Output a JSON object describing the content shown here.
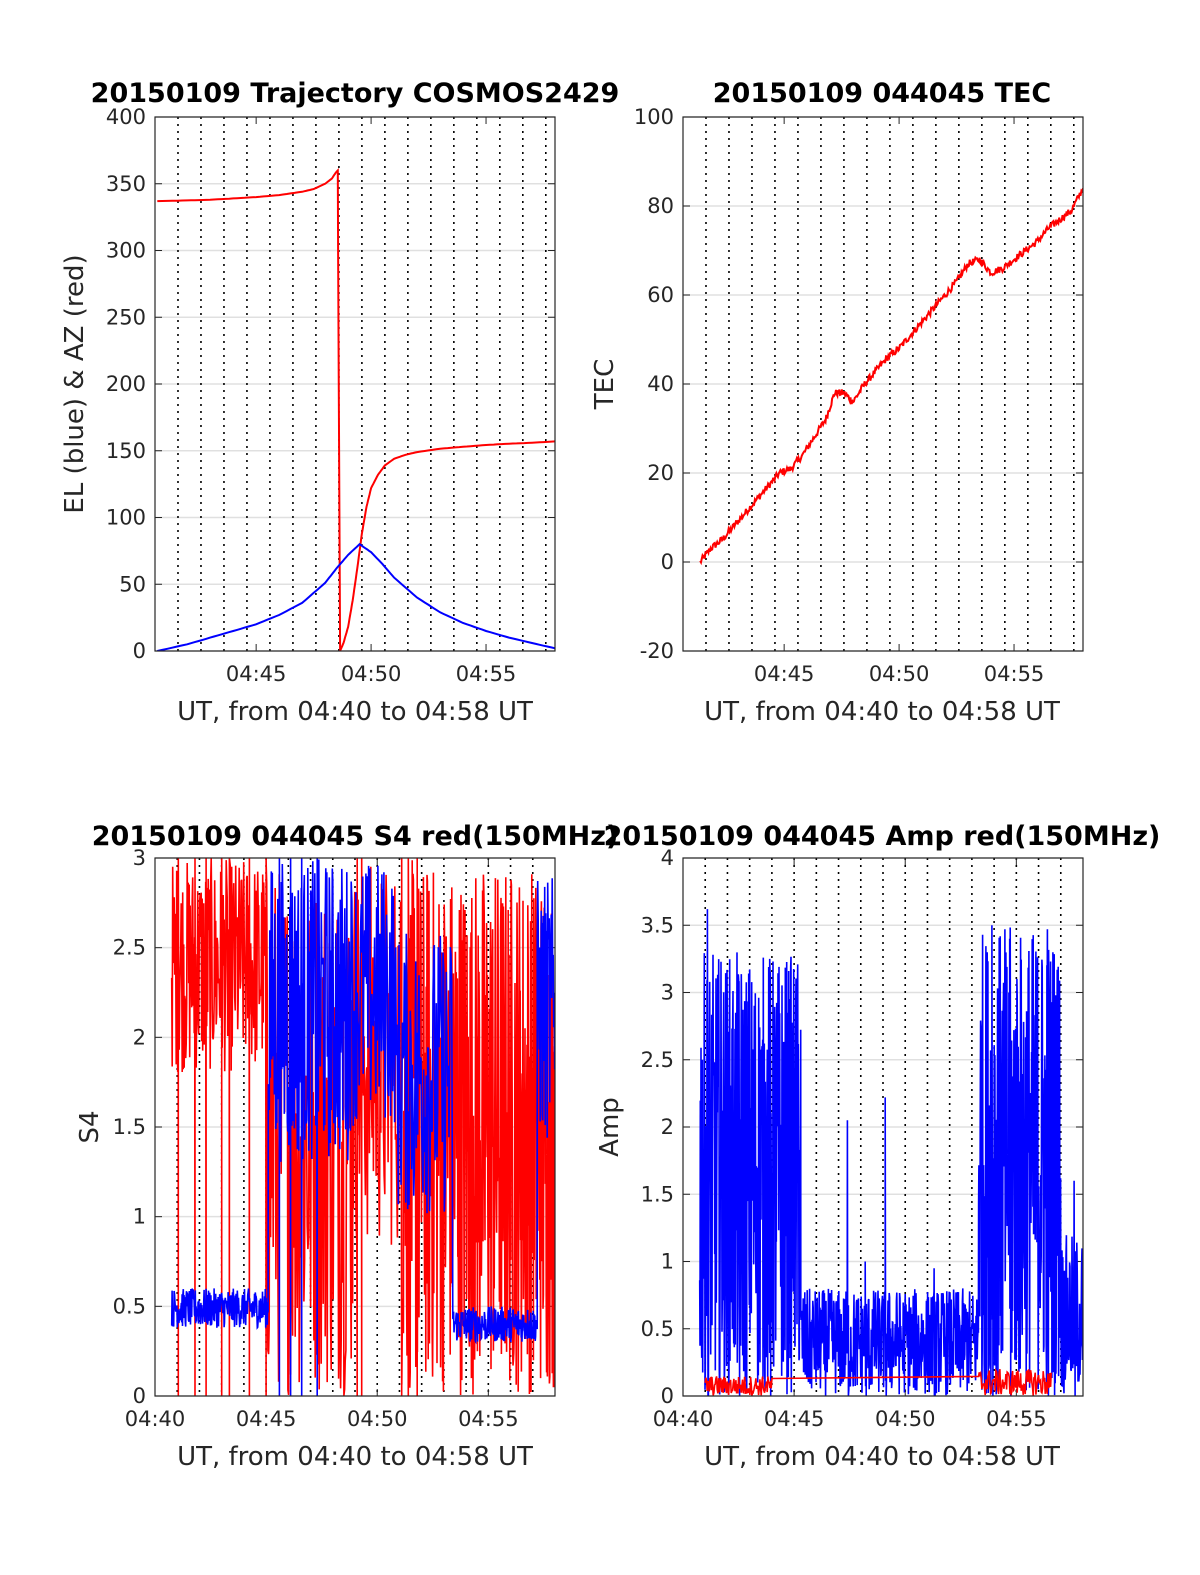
{
  "colors": {
    "red": "#ff0000",
    "blue": "#0000ff",
    "axis": "#262626",
    "grid": "#e0e0e0",
    "vgrid": "#000000"
  },
  "chart_data": [
    {
      "type": "line",
      "title": "20150109 Trajectory COSMOS2429",
      "xlabel": "UT, from 04:40 to 04:58 UT",
      "ylabel": "EL (blue) & AZ (red)",
      "xlim": [
        40.6,
        58
      ],
      "ylim": [
        0,
        400
      ],
      "yticks": [
        "0",
        "50",
        "100",
        "150",
        "200",
        "250",
        "300",
        "350",
        "400"
      ],
      "xticks": [
        {
          "v": 45,
          "label": "04:45"
        },
        {
          "v": 50,
          "label": "04:50"
        },
        {
          "v": 55,
          "label": "04:55"
        }
      ],
      "vgrid_minutes": [
        41.6,
        42.6,
        43.6,
        44.6,
        45.6,
        46.6,
        47.6,
        48.6,
        49.6,
        50.6,
        51.6,
        52.6,
        53.6,
        54.6,
        55.6,
        56.6,
        57.6
      ],
      "grid": true,
      "series": [
        {
          "color": "red",
          "x": [
            40.7,
            42,
            43,
            44,
            45,
            46,
            47,
            47.5,
            48,
            48.3,
            48.45,
            48.55,
            48.65,
            48.8,
            49.0,
            49.2,
            49.4,
            49.6,
            49.8,
            50.0,
            50.3,
            50.6,
            51,
            51.5,
            52,
            53,
            54,
            55,
            56,
            57,
            58
          ],
          "y": [
            337,
            337.5,
            338,
            339,
            340,
            341.5,
            344,
            346,
            350,
            354,
            358,
            360,
            0,
            6,
            18,
            38,
            62,
            88,
            108,
            122,
            132,
            139,
            144,
            147,
            149,
            151.5,
            153,
            154.3,
            155.3,
            156,
            157
          ]
        },
        {
          "color": "blue",
          "x": [
            40.7,
            42,
            43,
            44,
            45,
            46,
            47,
            48,
            48.5,
            49,
            49.5,
            50,
            50.5,
            51,
            52,
            53,
            54,
            55,
            56,
            57,
            58
          ],
          "y": [
            0,
            5,
            10,
            15,
            20,
            27,
            36,
            51,
            62,
            72,
            80,
            74,
            65,
            55,
            40,
            29,
            21,
            15,
            10,
            6,
            2
          ]
        }
      ]
    },
    {
      "type": "line",
      "title": "20150109 044045 TEC",
      "xlabel": "UT, from 04:40 to 04:58 UT",
      "ylabel": "TEC",
      "xlim": [
        40.6,
        58
      ],
      "ylim": [
        -20,
        100
      ],
      "yticks": [
        "-20",
        "0",
        "20",
        "40",
        "60",
        "80",
        "100"
      ],
      "xticks": [
        {
          "v": 45,
          "label": "04:45"
        },
        {
          "v": 50,
          "label": "04:50"
        },
        {
          "v": 55,
          "label": "04:55"
        }
      ],
      "vgrid_minutes": [
        41.6,
        42.6,
        43.6,
        44.6,
        45.6,
        46.6,
        47.6,
        48.6,
        49.6,
        50.6,
        51.6,
        52.6,
        53.6,
        54.6,
        55.6,
        56.6,
        57.6
      ],
      "grid": true,
      "series": [
        {
          "color": "red",
          "x": [
            41.35,
            41.8,
            42.3,
            42.8,
            43.3,
            43.8,
            44.3,
            44.8,
            45.3,
            45.8,
            46.3,
            46.8,
            47.2,
            47.6,
            48.0,
            48.5,
            49.0,
            49.5,
            50.0,
            50.5,
            51.0,
            51.5,
            52.0,
            52.5,
            53.0,
            53.5,
            54.0,
            54.5,
            55.0,
            55.5,
            56.0,
            56.5,
            57.0,
            57.5,
            58.0
          ],
          "y": [
            0,
            3,
            5,
            8,
            11,
            14,
            17,
            20,
            21,
            24,
            28,
            32,
            38,
            38,
            36,
            40,
            43,
            46,
            48,
            51,
            54,
            57,
            60,
            63,
            67,
            68,
            65,
            66,
            68,
            70,
            72,
            75,
            77,
            79,
            84
          ]
        }
      ]
    },
    {
      "type": "line",
      "title": "20150109 044045 S4 red(150MHz)",
      "xlabel": "UT, from 04:40 to 04:58 UT",
      "ylabel": "S4",
      "xlim": [
        40,
        58
      ],
      "ylim": [
        0,
        3
      ],
      "yticks": [
        "0",
        "0.5",
        "1",
        "1.5",
        "2",
        "2.5",
        "3"
      ],
      "xticks": [
        {
          "v": 40,
          "label": "04:40"
        },
        {
          "v": 45,
          "label": "04:45"
        },
        {
          "v": 50,
          "label": "04:50"
        },
        {
          "v": 55,
          "label": "04:55"
        }
      ],
      "vgrid_minutes": [
        41,
        42,
        43,
        44,
        45,
        46,
        47,
        48,
        49,
        50,
        51,
        52,
        53,
        54,
        55,
        56,
        57
      ],
      "grid": true,
      "series": [
        {
          "color": "red",
          "segments": [
            {
              "x0": 40.75,
              "x1": 45.05,
              "min": 1.8,
              "max": 3.0,
              "drops": [
                41.05,
                41.8,
                42.3,
                43.0,
                43.35,
                44.25,
                45.0
              ],
              "density": 4
            },
            {
              "x0": 45.05,
              "x1": 48.9,
              "min": 0.0,
              "max": 3.0,
              "drops": [],
              "density": 3
            },
            {
              "x0": 48.9,
              "x1": 51.05,
              "min": 0.8,
              "max": 3.0,
              "drops": [
                49.1,
                49.3
              ],
              "density": 3
            },
            {
              "x0": 51.05,
              "x1": 58.0,
              "min": 0.0,
              "max": 3.0,
              "drops": [
                51.1,
                51.4,
                51.8
              ],
              "density": 5
            }
          ]
        },
        {
          "color": "blue",
          "segments": [
            {
              "x0": 40.75,
              "x1": 45.1,
              "min": 0.38,
              "max": 0.6,
              "drops": [],
              "density": 5
            },
            {
              "x0": 45.1,
              "x1": 48.8,
              "min": 1.3,
              "max": 3.0,
              "drops": [
                45.6,
                46.1,
                46.6,
                47.3
              ],
              "density": 4
            },
            {
              "x0": 48.8,
              "x1": 50.8,
              "min": 1.5,
              "max": 3.0,
              "drops": [],
              "density": 3
            },
            {
              "x0": 50.8,
              "x1": 53.4,
              "min": 1.0,
              "max": 2.6,
              "drops": [],
              "density": 3
            },
            {
              "x0": 53.4,
              "x1": 57.2,
              "min": 0.3,
              "max": 0.5,
              "drops": [],
              "density": 5
            },
            {
              "x0": 57.2,
              "x1": 58.0,
              "min": 1.4,
              "max": 2.9,
              "drops": [],
              "density": 4
            }
          ]
        }
      ]
    },
    {
      "type": "line",
      "title": "20150109 044045 Amp red(150MHz)",
      "xlabel": "UT, from 04:40 to 04:58 UT",
      "ylabel": "Amp",
      "xlim": [
        40,
        58
      ],
      "ylim": [
        0,
        4
      ],
      "yticks": [
        "0",
        "0.5",
        "1",
        "1.5",
        "2",
        "2.5",
        "3",
        "3.5",
        "4"
      ],
      "xticks": [
        {
          "v": 40,
          "label": "04:40"
        },
        {
          "v": 45,
          "label": "04:45"
        },
        {
          "v": 50,
          "label": "04:50"
        },
        {
          "v": 55,
          "label": "04:55"
        }
      ],
      "vgrid_minutes": [
        41,
        42,
        43,
        44,
        45,
        46,
        47,
        48,
        49,
        50,
        51,
        52,
        53,
        54,
        55,
        56,
        57
      ],
      "grid": true,
      "series": [
        {
          "color": "blue",
          "segments": [
            {
              "x0": 40.75,
              "x1": 45.3,
              "min": 0.0,
              "max": 3.3,
              "peaks": [
                [
                  41.1,
                  3.62
                ],
                [
                  42.5,
                  3.1
                ],
                [
                  43.9,
                  3.25
                ]
              ],
              "density": 6
            },
            {
              "x0": 45.3,
              "x1": 53.3,
              "min": 0.0,
              "max": 0.8,
              "peaks": [
                [
                  47.4,
                  2.05
                ],
                [
                  49.1,
                  2.22
                ],
                [
                  48.2,
                  1.0
                ],
                [
                  51.3,
                  0.95
                ]
              ],
              "density": 5
            },
            {
              "x0": 53.3,
              "x1": 57.0,
              "min": 0.0,
              "max": 3.5,
              "peaks": [
                [
                  53.9,
                  3.5
                ],
                [
                  54.7,
                  3.4
                ],
                [
                  56.4,
                  3.47
                ]
              ],
              "density": 6
            },
            {
              "x0": 57.0,
              "x1": 58.0,
              "min": 0.0,
              "max": 1.2,
              "peaks": [
                [
                  57.6,
                  1.6
                ]
              ],
              "density": 5
            }
          ]
        },
        {
          "color": "red",
          "segments": [
            {
              "x0": 41.0,
              "x1": 44.0,
              "min": 0.0,
              "max": 0.15,
              "peaks": [],
              "density": 3
            },
            {
              "x0": 53.3,
              "x1": 56.6,
              "min": 0.0,
              "max": 0.2,
              "peaks": [],
              "density": 3
            }
          ]
        }
      ]
    }
  ]
}
